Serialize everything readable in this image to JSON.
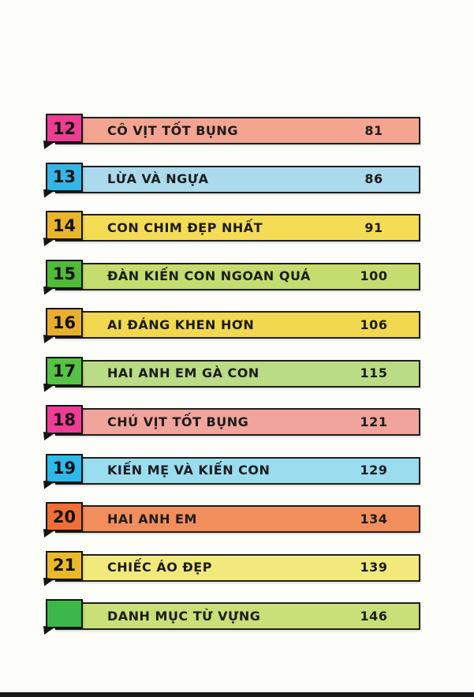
{
  "page": {
    "background_color": "#FDFDFA",
    "border_color": "#1F1F1F",
    "text_color": "#1C1C1C",
    "bottom_edge_color": "#1A1A1A"
  },
  "toc": {
    "items": [
      {
        "number": "12",
        "title": "CÔ VỊT TỐT BỤNG",
        "page": "81",
        "tab_color": "#EC3D92",
        "bar_color": "#F3A591"
      },
      {
        "number": "13",
        "title": "LỪA VÀ NGỰA",
        "page": "86",
        "tab_color": "#35B5E5",
        "bar_color": "#AADAEC"
      },
      {
        "number": "14",
        "title": "CON CHIM ĐẸP NHẤT",
        "page": "91",
        "tab_color": "#E9B32B",
        "bar_color": "#F5DC55"
      },
      {
        "number": "15",
        "title": "ĐÀN KIẾN CON NGOAN QUÁ",
        "page": "100",
        "tab_color": "#4EBC37",
        "bar_color": "#C3DD6E"
      },
      {
        "number": "16",
        "title": "AI ĐÁNG KHEN HƠN",
        "page": "106",
        "tab_color": "#E8AF2E",
        "bar_color": "#F1D84F"
      },
      {
        "number": "17",
        "title": "HAI ANH EM GÀ CON",
        "page": "115",
        "tab_color": "#55C344",
        "bar_color": "#BADC84"
      },
      {
        "number": "18",
        "title": "CHÚ VỊT TỐT BỤNG",
        "page": "121",
        "tab_color": "#EE3D96",
        "bar_color": "#F1A49B"
      },
      {
        "number": "19",
        "title": "KIẾN MẸ VÀ KIẾN CON",
        "page": "129",
        "tab_color": "#2EB9E9",
        "bar_color": "#9ADDEF"
      },
      {
        "number": "20",
        "title": "HAI ANH EM",
        "page": "134",
        "tab_color": "#F06F36",
        "bar_color": "#F28E5C"
      },
      {
        "number": "21",
        "title": "CHIẾC ÁO ĐẸP",
        "page": "139",
        "tab_color": "#E9B92B",
        "bar_color": "#F2E97D"
      },
      {
        "number": "",
        "title": "DANH MỤC TỪ VỰNG",
        "page": "146",
        "tab_color": "#3CB84A",
        "bar_color": "#C8E077"
      }
    ]
  }
}
